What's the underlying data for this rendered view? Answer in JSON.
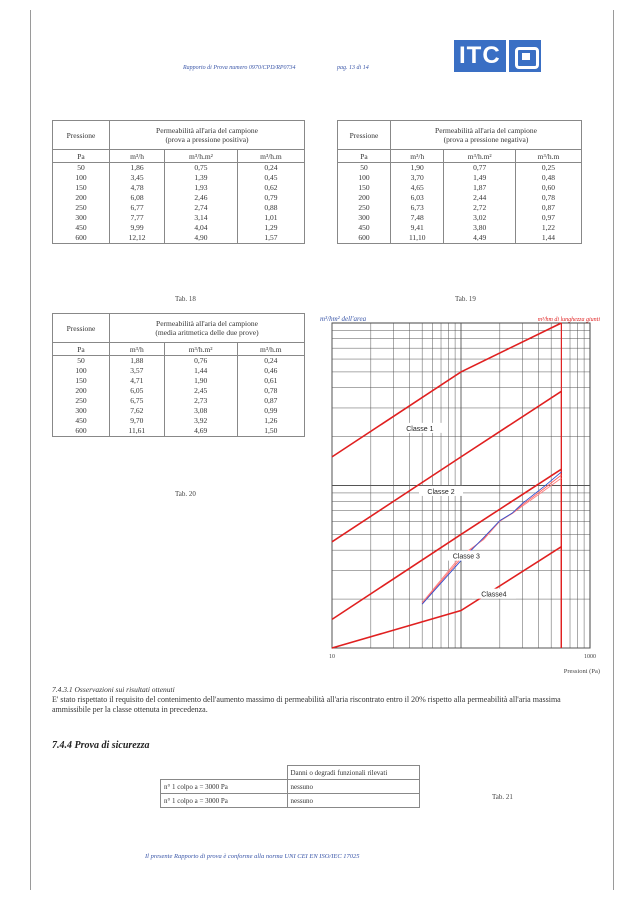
{
  "header": {
    "report_text": "Rapporto di Prova numero 0970/CPD/RP0734",
    "page_text": "pag. 13 di 14",
    "logo_text": "ITC"
  },
  "table18": {
    "caption": "Tab. 18",
    "headers": [
      "Pressione",
      "Permeabilità all'aria del campione",
      "(prova a pressione positiva)"
    ],
    "units": [
      "Pa",
      "m³/h",
      "m³/h.m²",
      "m³/h.m"
    ],
    "rows": [
      [
        "50",
        "1,86",
        "0,75",
        "0,24"
      ],
      [
        "100",
        "3,45",
        "1,39",
        "0,45"
      ],
      [
        "150",
        "4,78",
        "1,93",
        "0,62"
      ],
      [
        "200",
        "6,08",
        "2,46",
        "0,79"
      ],
      [
        "250",
        "6,77",
        "2,74",
        "0,88"
      ],
      [
        "300",
        "7,77",
        "3,14",
        "1,01"
      ],
      [
        "450",
        "9,99",
        "4,04",
        "1,29"
      ],
      [
        "600",
        "12,12",
        "4,90",
        "1,57"
      ]
    ]
  },
  "table19": {
    "caption": "Tab. 19",
    "headers": [
      "Pressione",
      "Permeabilità all'aria del campione",
      "(prova a pressione negativa)"
    ],
    "units": [
      "Pa",
      "m³/h",
      "m³/h.m²",
      "m³/h.m"
    ],
    "rows": [
      [
        "50",
        "1,90",
        "0,77",
        "0,25"
      ],
      [
        "100",
        "3,70",
        "1,49",
        "0,48"
      ],
      [
        "150",
        "4,65",
        "1,87",
        "0,60"
      ],
      [
        "200",
        "6,03",
        "2,44",
        "0,78"
      ],
      [
        "250",
        "6,73",
        "2,72",
        "0,87"
      ],
      [
        "300",
        "7,48",
        "3,02",
        "0,97"
      ],
      [
        "450",
        "9,41",
        "3,80",
        "1,22"
      ],
      [
        "600",
        "11,10",
        "4,49",
        "1,44"
      ]
    ]
  },
  "table20": {
    "caption": "Tab. 20",
    "headers": [
      "Pressione",
      "Permeabilità all'aria del campione",
      "(media aritmetica delle due prove)"
    ],
    "units": [
      "Pa",
      "m³/h",
      "m³/h.m²",
      "m³/h.m"
    ],
    "rows": [
      [
        "50",
        "1,88",
        "0,76",
        "0,24"
      ],
      [
        "100",
        "3,57",
        "1,44",
        "0,46"
      ],
      [
        "150",
        "4,71",
        "1,90",
        "0,61"
      ],
      [
        "200",
        "6,05",
        "2,45",
        "0,78"
      ],
      [
        "250",
        "6,75",
        "2,73",
        "0,87"
      ],
      [
        "300",
        "7,62",
        "3,08",
        "0,99"
      ],
      [
        "450",
        "9,70",
        "3,92",
        "1,26"
      ],
      [
        "600",
        "11,61",
        "4,69",
        "1,50"
      ]
    ]
  },
  "chart_data": {
    "type": "line",
    "title": "",
    "ylabel_left": "m³/hm² dell'area",
    "ylabel_right": "m³/hm di lunghezza giunti",
    "xlabel": "Pressioni (Pa)",
    "x_scale": "log",
    "y_scale": "log",
    "xlim": [
      10,
      1000
    ],
    "ylim": [
      1,
      100
    ],
    "x_tick_labels": [
      "10",
      "1000"
    ],
    "class_labels": [
      "Classe 1",
      "Classe 2",
      "Classe 3",
      "Classe4"
    ],
    "series": [
      {
        "color": "#e02020",
        "x": [
          10,
          100,
          600
        ],
        "y": [
          15,
          50,
          100
        ]
      },
      {
        "color": "#e02020",
        "x": [
          10,
          100,
          600
        ],
        "y": [
          4.5,
          15,
          38
        ]
      },
      {
        "color": "#e02020",
        "x": [
          10,
          100,
          600
        ],
        "y": [
          1.5,
          5,
          12.6
        ]
      },
      {
        "color": "#e02020",
        "x": [
          10,
          100,
          600
        ],
        "y": [
          0.5,
          1.7,
          4.2
        ]
      },
      {
        "color": "#ff6060",
        "x": [
          50,
          100,
          150,
          200,
          250,
          300,
          450,
          600
        ],
        "y": [
          1.88,
          3.57,
          4.71,
          6.05,
          6.75,
          7.62,
          9.7,
          11.61
        ]
      },
      {
        "color": "#ff8080",
        "x": [
          50,
          100,
          150,
          200,
          250,
          300,
          450,
          600
        ],
        "y": [
          1.9,
          3.7,
          4.65,
          6.03,
          6.73,
          7.48,
          9.41,
          11.1
        ]
      },
      {
        "color": "#3050d0",
        "x": [
          50,
          100,
          150,
          200,
          250,
          300,
          450,
          600
        ],
        "y": [
          1.86,
          3.45,
          4.78,
          6.08,
          6.77,
          7.77,
          9.99,
          12.12
        ]
      }
    ]
  },
  "observations": {
    "title": "7.4.3.1  Osservazioni sui risultati ottenuti",
    "text": "E' stato rispettato il requisito del contenimento dell'aumento massimo di permeabilità all'aria riscontrato entro il 20% rispetto alla permeabilità all'aria massima ammissibile per la classe ottenuta in precedenza."
  },
  "safety": {
    "title": "7.4.4  Prova di sicurezza",
    "header": "Danni o degradi funzionali rilevati",
    "rows": [
      [
        "n° 1 colpo a = 3000 Pa",
        "nessuno"
      ],
      [
        "n° 1 colpo a = 3000 Pa",
        "nessuno"
      ]
    ],
    "caption": "Tab. 21"
  },
  "footer": "Il presente Rapporto di prova è conforme alla norma UNI CEI EN ISO/IEC 17025"
}
